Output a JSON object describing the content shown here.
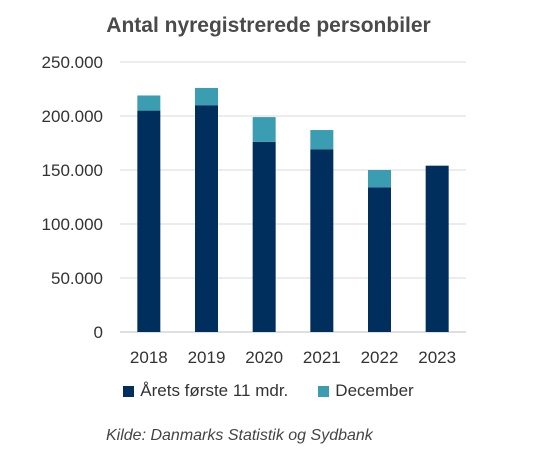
{
  "chart_data": {
    "type": "bar",
    "stacked": true,
    "title": "Antal nyregistrerede personbiler",
    "categories": [
      "2018",
      "2019",
      "2020",
      "2021",
      "2022",
      "2023"
    ],
    "series": [
      {
        "name": "Årets første 11 mdr.",
        "color": "#002e5d",
        "values": [
          205000,
          210000,
          176000,
          169000,
          134000,
          154000
        ]
      },
      {
        "name": "December",
        "color": "#3b9db1",
        "values": [
          14000,
          16000,
          23000,
          18000,
          16000,
          0
        ]
      }
    ],
    "ylim": [
      0,
      250000
    ],
    "yticks": [
      "0",
      "50.000",
      "100.000",
      "150.000",
      "200.000",
      "250.000"
    ],
    "ytick_values": [
      0,
      50000,
      100000,
      150000,
      200000,
      250000
    ],
    "grid": true,
    "legend_position": "bottom"
  },
  "source": "Kilde: Danmarks Statistik og Sydbank"
}
